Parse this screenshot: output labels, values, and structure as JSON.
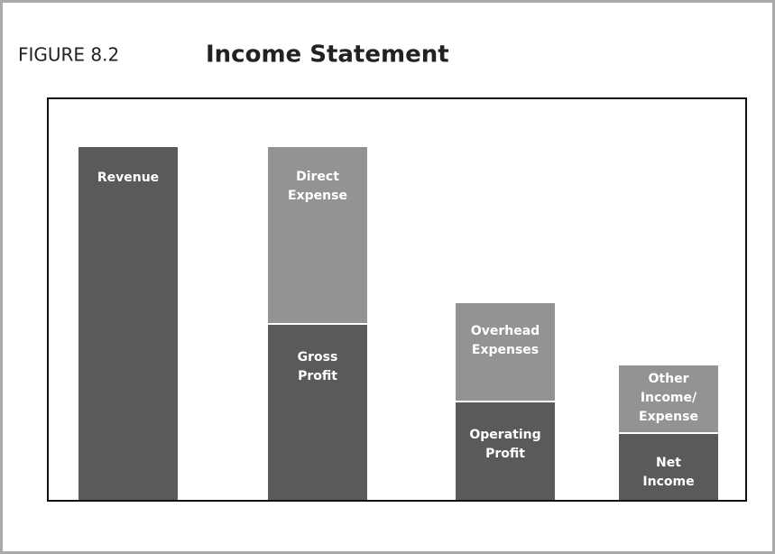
{
  "figure": {
    "label": "FIGURE 8.2",
    "title": "Income Statement"
  },
  "bars": [
    {
      "segments": [
        {
          "lines": [
            "Revenue"
          ]
        }
      ]
    },
    {
      "segments": [
        {
          "lines": [
            "Direct",
            "Expense"
          ]
        },
        {
          "lines": [
            "Gross",
            "Profit"
          ]
        }
      ]
    },
    {
      "segments": [
        {
          "lines": [
            "Overhead",
            "Expenses"
          ]
        },
        {
          "lines": [
            "Operating",
            "Profit"
          ]
        }
      ]
    },
    {
      "segments": [
        {
          "lines": [
            "Other",
            "Income/",
            "Expense"
          ]
        },
        {
          "lines": [
            "Net",
            "Income"
          ]
        }
      ]
    }
  ]
}
